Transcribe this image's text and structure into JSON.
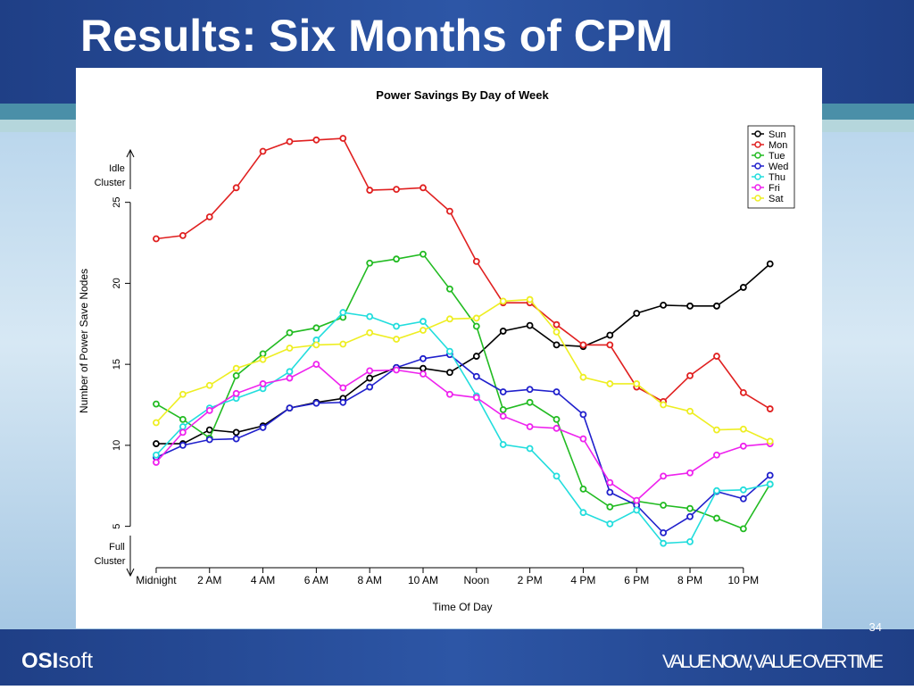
{
  "slide": {
    "title": "Results: Six Months of CPM",
    "page_number": "34",
    "logo": [
      "OSI",
      "soft"
    ],
    "tagline": "VALUE NOW, VALUE OVER TIME"
  },
  "chart_data": {
    "type": "line",
    "title": "Power Savings By Day of Week",
    "x_label": "Time Of Day",
    "y_label": "Number of Power Save Nodes",
    "annotations": {
      "top": [
        "Idle",
        "Cluster"
      ],
      "bottom": [
        "Full",
        "Cluster"
      ]
    },
    "x": [
      0,
      1,
      2,
      3,
      4,
      5,
      6,
      7,
      8,
      9,
      10,
      11,
      12,
      13,
      14,
      15,
      16,
      17,
      18,
      19,
      20,
      21,
      22,
      23
    ],
    "xlim": [
      -0.5,
      23.5
    ],
    "xticks": [
      {
        "value": 0,
        "label": "Midnight"
      },
      {
        "value": 2,
        "label": "2 AM"
      },
      {
        "value": 4,
        "label": "4 AM"
      },
      {
        "value": 6,
        "label": "6 AM"
      },
      {
        "value": 8,
        "label": "8 AM"
      },
      {
        "value": 10,
        "label": "10 AM"
      },
      {
        "value": 12,
        "label": "Noon"
      },
      {
        "value": 14,
        "label": "2 PM"
      },
      {
        "value": 16,
        "label": "4 PM"
      },
      {
        "value": 18,
        "label": "6 PM"
      },
      {
        "value": 20,
        "label": "8 PM"
      },
      {
        "value": 22,
        "label": "10 PM"
      }
    ],
    "ylim": [
      2.5,
      29.5
    ],
    "yticks": [
      5,
      10,
      15,
      20,
      25
    ],
    "legend": "top-right",
    "series": [
      {
        "name": "Sun",
        "color": "#000000",
        "values": [
          10.1,
          10.1,
          10.95,
          10.8,
          11.2,
          12.3,
          12.65,
          12.9,
          14.15,
          14.8,
          14.75,
          14.5,
          15.5,
          17.05,
          17.4,
          16.2,
          16.1,
          16.8,
          18.15,
          18.65,
          18.6,
          18.6,
          19.75,
          21.2
        ]
      },
      {
        "name": "Mon",
        "color": "#e02020",
        "values": [
          22.75,
          22.95,
          24.1,
          25.9,
          28.15,
          28.75,
          28.85,
          28.95,
          25.75,
          25.8,
          25.9,
          24.45,
          21.35,
          18.8,
          18.8,
          17.45,
          16.2,
          16.2,
          13.6,
          12.7,
          14.3,
          15.5,
          13.25,
          12.25
        ]
      },
      {
        "name": "Tue",
        "color": "#22bb22",
        "values": [
          12.55,
          11.6,
          10.45,
          14.3,
          15.65,
          16.95,
          17.25,
          17.9,
          21.25,
          21.5,
          21.8,
          19.65,
          17.35,
          12.2,
          12.65,
          11.6,
          7.3,
          6.2,
          6.55,
          6.3,
          6.1,
          5.5,
          4.85,
          7.6
        ]
      },
      {
        "name": "Wed",
        "color": "#2020cc",
        "values": [
          9.25,
          10.0,
          10.35,
          10.4,
          11.1,
          12.3,
          12.6,
          12.65,
          13.6,
          14.8,
          15.35,
          15.6,
          14.25,
          13.3,
          13.45,
          13.3,
          11.9,
          7.1,
          6.3,
          4.6,
          5.6,
          7.15,
          6.7,
          8.15
        ]
      },
      {
        "name": "Thu",
        "color": "#22dddd",
        "values": [
          9.4,
          11.15,
          12.3,
          12.9,
          13.5,
          14.55,
          16.5,
          18.2,
          17.95,
          17.35,
          17.65,
          15.8,
          13.05,
          10.05,
          9.8,
          8.1,
          5.85,
          5.15,
          6.0,
          3.95,
          4.05,
          7.2,
          7.25,
          7.6
        ]
      },
      {
        "name": "Fri",
        "color": "#ee22ee",
        "values": [
          8.95,
          10.8,
          12.15,
          13.2,
          13.8,
          14.15,
          15.0,
          13.55,
          14.6,
          14.65,
          14.4,
          13.15,
          12.95,
          11.8,
          11.15,
          11.05,
          10.4,
          7.7,
          6.6,
          8.1,
          8.3,
          9.4,
          9.95,
          10.1
        ]
      },
      {
        "name": "Sat",
        "color": "#eeee22",
        "values": [
          11.4,
          13.15,
          13.7,
          14.75,
          15.3,
          16.0,
          16.2,
          16.25,
          16.95,
          16.55,
          17.1,
          17.8,
          17.85,
          18.9,
          19.0,
          17.0,
          14.2,
          13.8,
          13.8,
          12.5,
          12.1,
          10.95,
          11.0,
          10.25
        ]
      }
    ]
  }
}
